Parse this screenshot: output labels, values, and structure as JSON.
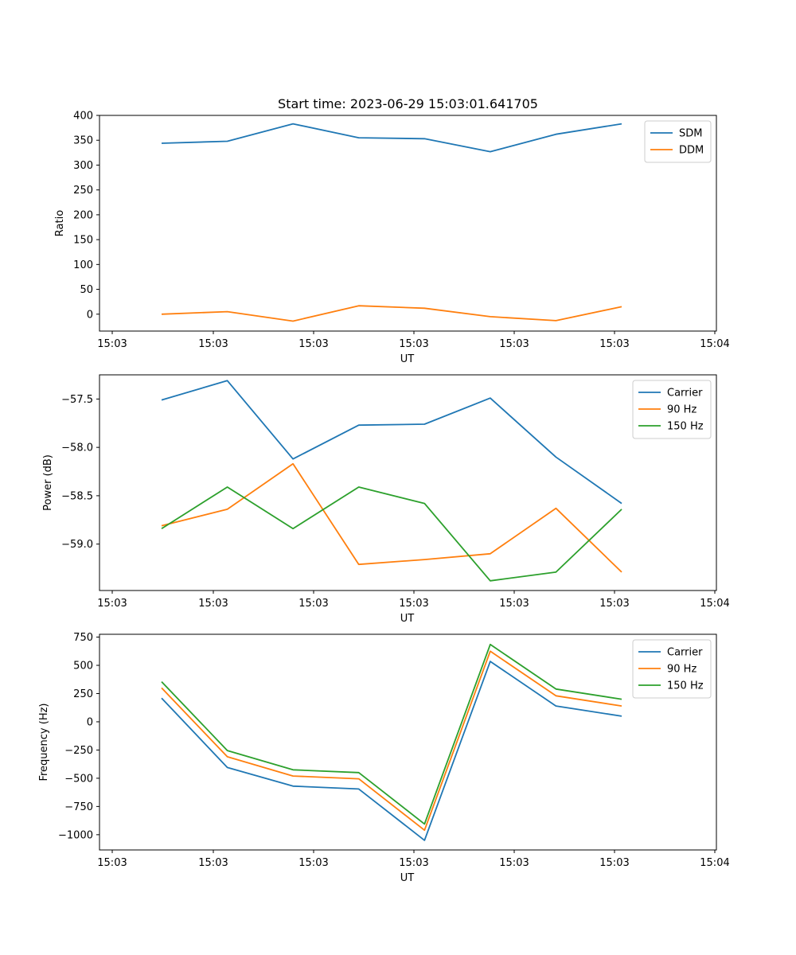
{
  "chart_data": [
    {
      "type": "line",
      "title": "Start time: 2023-06-29 15:03:01.641705",
      "xlabel": "UT",
      "ylabel": "Ratio",
      "x_tick_labels": [
        "15:03",
        "15:03",
        "15:03",
        "15:03",
        "15:03",
        "15:03",
        "15:04"
      ],
      "y_ticks": [
        0,
        50,
        100,
        150,
        200,
        250,
        300,
        350,
        400
      ],
      "ylim": [
        -34,
        400
      ],
      "xlim": [
        -1.2,
        8.25
      ],
      "x": [
        0,
        1,
        2,
        3,
        4,
        5,
        6,
        7
      ],
      "legend_position": "upper-right",
      "grid": false,
      "series": [
        {
          "name": "SDM",
          "color": "#1f77b4",
          "values": [
            344,
            348,
            383,
            355,
            353,
            327,
            362,
            383
          ]
        },
        {
          "name": "DDM",
          "color": "#ff7f0e",
          "values": [
            0,
            5,
            -14,
            17,
            12,
            -5,
            -13,
            15
          ]
        }
      ]
    },
    {
      "type": "line",
      "xlabel": "UT",
      "ylabel": "Power (dB)",
      "x_tick_labels": [
        "15:03",
        "15:03",
        "15:03",
        "15:03",
        "15:03",
        "15:03",
        "15:04"
      ],
      "y_ticks": [
        -59.0,
        -58.5,
        -58.0,
        -57.5
      ],
      "y_tick_labels": [
        "−59.0",
        "−58.5",
        "−58.0",
        "−57.5"
      ],
      "ylim": [
        -59.48,
        -57.25
      ],
      "xlim": [
        -1.2,
        8.25
      ],
      "x": [
        0,
        1,
        2,
        3,
        4,
        5,
        6,
        7
      ],
      "legend_position": "upper-right",
      "grid": false,
      "series": [
        {
          "name": "Carrier",
          "color": "#1f77b4",
          "values": [
            -57.51,
            -57.31,
            -58.12,
            -57.77,
            -57.76,
            -57.49,
            -58.1,
            -58.58
          ]
        },
        {
          "name": "90 Hz",
          "color": "#ff7f0e",
          "values": [
            -58.81,
            -58.64,
            -58.17,
            -59.21,
            -59.16,
            -59.1,
            -58.63,
            -59.29
          ]
        },
        {
          "name": "150 Hz",
          "color": "#2ca02c",
          "values": [
            -58.84,
            -58.41,
            -58.84,
            -58.41,
            -58.58,
            -59.38,
            -59.29,
            -58.64
          ]
        }
      ]
    },
    {
      "type": "line",
      "xlabel": "UT",
      "ylabel": "Frequency (Hz)",
      "x_tick_labels": [
        "15:03",
        "15:03",
        "15:03",
        "15:03",
        "15:03",
        "15:03",
        "15:04"
      ],
      "y_ticks": [
        -1000,
        -750,
        -500,
        -250,
        0,
        250,
        500,
        750
      ],
      "y_tick_labels": [
        "−1000",
        "−750",
        "−500",
        "−250",
        "0",
        "250",
        "500",
        "750"
      ],
      "ylim": [
        -1135,
        775
      ],
      "xlim": [
        -1.2,
        8.25
      ],
      "x": [
        0,
        1,
        2,
        3,
        4,
        5,
        6,
        7
      ],
      "legend_position": "upper-right",
      "grid": false,
      "series": [
        {
          "name": "Carrier",
          "color": "#1f77b4",
          "values": [
            210,
            -405,
            -570,
            -595,
            -1050,
            535,
            140,
            50
          ]
        },
        {
          "name": "90 Hz",
          "color": "#ff7f0e",
          "values": [
            300,
            -310,
            -480,
            -505,
            -960,
            625,
            230,
            140
          ]
        },
        {
          "name": "150 Hz",
          "color": "#2ca02c",
          "values": [
            355,
            -255,
            -425,
            -450,
            -905,
            685,
            290,
            200
          ]
        }
      ]
    }
  ]
}
